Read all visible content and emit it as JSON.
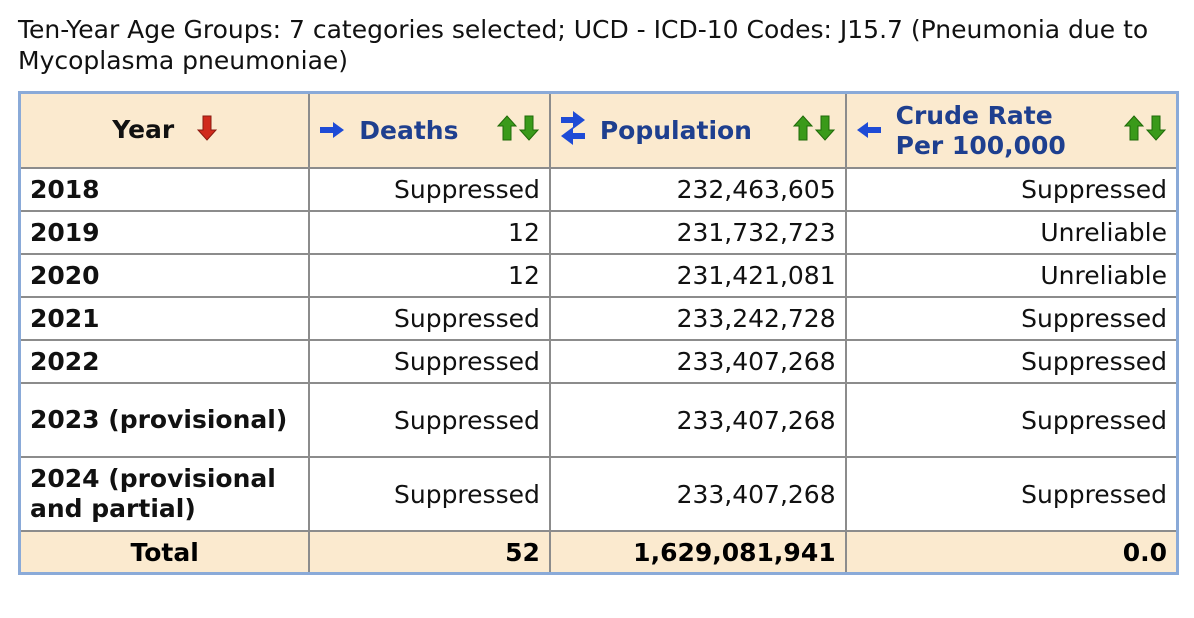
{
  "caption": "Ten-Year Age Groups: 7 categories selected; UCD - ICD-10 Codes: J15.7 (Pneumonia due to Mycoplasma pneumoniae)",
  "headers": {
    "year": "Year",
    "deaths": "Deaths",
    "population": "Population",
    "crude_rate_line1": "Crude Rate",
    "crude_rate_line2": "Per 100,000"
  },
  "rows": [
    {
      "year": "2018",
      "deaths": "Suppressed",
      "population": "232,463,605",
      "crude_rate": "Suppressed"
    },
    {
      "year": "2019",
      "deaths": "12",
      "population": "231,732,723",
      "crude_rate": "Unreliable"
    },
    {
      "year": "2020",
      "deaths": "12",
      "population": "231,421,081",
      "crude_rate": "Unreliable"
    },
    {
      "year": "2021",
      "deaths": "Suppressed",
      "population": "233,242,728",
      "crude_rate": "Suppressed"
    },
    {
      "year": "2022",
      "deaths": "Suppressed",
      "population": "233,407,268",
      "crude_rate": "Suppressed"
    },
    {
      "year": "2023 (provisional)",
      "deaths": "Suppressed",
      "population": "233,407,268",
      "crude_rate": "Suppressed"
    },
    {
      "year": "2024 (provisional and partial)",
      "deaths": "Suppressed",
      "population": "233,407,268",
      "crude_rate": "Suppressed"
    }
  ],
  "total": {
    "label": "Total",
    "deaths": "52",
    "population": "1,629,081,941",
    "crude_rate": "0.0"
  },
  "icons": {
    "sort_desc": "red-down-arrow-icon",
    "move_right": "blue-right-arrow-icon",
    "swap": "blue-swap-arrows-icon",
    "move_left": "blue-left-arrow-icon",
    "sort_toggle": "green-up-down-arrows-icon"
  },
  "colors": {
    "header_bg": "#fbeacf",
    "header_link": "#1e3f8f",
    "table_border": "#8aaad8",
    "sort_arrow_red": "#d02a1c",
    "sort_arrow_green": "#3a9a1a",
    "move_arrow_blue": "#1e4bd6"
  }
}
